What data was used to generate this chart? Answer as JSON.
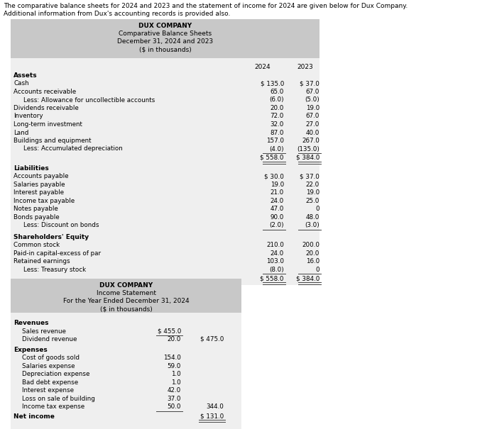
{
  "intro_line1": "The comparative balance sheets for 2024 and 2023 and the statement of income for 2024 are given below for Dux Company.",
  "intro_line2": "Additional information from Dux's accounting records is provided also.",
  "bs_title_lines": [
    "DUX COMPANY",
    "Comparative Balance Sheets",
    "December 31, 2024 and 2023",
    "($ in thousands)"
  ],
  "bs_col_headers": [
    "2024",
    "2023"
  ],
  "bs_assets_header": "Assets",
  "bs_assets_rows": [
    {
      "label": "Cash",
      "indent": false,
      "val2024": "$ 135.0",
      "val2023": "$ 37.0"
    },
    {
      "label": "Accounts receivable",
      "indent": false,
      "val2024": "65.0",
      "val2023": "67.0"
    },
    {
      "label": "  Less: Allowance for uncollectible accounts",
      "indent": true,
      "val2024": "(6.0)",
      "val2023": "(5.0)"
    },
    {
      "label": "Dividends receivable",
      "indent": false,
      "val2024": "20.0",
      "val2023": "19.0"
    },
    {
      "label": "Inventory",
      "indent": false,
      "val2024": "72.0",
      "val2023": "67.0"
    },
    {
      "label": "Long-term investment",
      "indent": false,
      "val2024": "32.0",
      "val2023": "27.0"
    },
    {
      "label": "Land",
      "indent": false,
      "val2024": "87.0",
      "val2023": "40.0"
    },
    {
      "label": "Buildings and equipment",
      "indent": false,
      "val2024": "157.0",
      "val2023": "267.0"
    },
    {
      "label": "  Less: Accumulated depreciation",
      "indent": true,
      "val2024": "(4.0)",
      "val2023": "(135.0)"
    }
  ],
  "bs_assets_total": [
    "$ 558.0",
    "$ 384.0"
  ],
  "bs_liab_header": "Liabilities",
  "bs_liab_rows": [
    {
      "label": "Accounts payable",
      "indent": false,
      "val2024": "$ 30.0",
      "val2023": "$ 37.0"
    },
    {
      "label": "Salaries payable",
      "indent": false,
      "val2024": "19.0",
      "val2023": "22.0"
    },
    {
      "label": "Interest payable",
      "indent": false,
      "val2024": "21.0",
      "val2023": "19.0"
    },
    {
      "label": "Income tax payable",
      "indent": false,
      "val2024": "24.0",
      "val2023": "25.0"
    },
    {
      "label": "Notes payable",
      "indent": false,
      "val2024": "47.0",
      "val2023": "0"
    },
    {
      "label": "Bonds payable",
      "indent": false,
      "val2024": "90.0",
      "val2023": "48.0"
    },
    {
      "label": "  Less: Discount on bonds",
      "indent": true,
      "val2024": "(2.0)",
      "val2023": "(3.0)"
    }
  ],
  "bs_equity_header": "Shareholders' Equity",
  "bs_equity_rows": [
    {
      "label": "Common stock",
      "indent": false,
      "val2024": "210.0",
      "val2023": "200.0"
    },
    {
      "label": "Paid-in capital-excess of par",
      "indent": false,
      "val2024": "24.0",
      "val2023": "20.0"
    },
    {
      "label": "Retained earnings",
      "indent": false,
      "val2024": "103.0",
      "val2023": "16.0"
    },
    {
      "label": "  Less: Treasury stock",
      "indent": true,
      "val2024": "(8.0)",
      "val2023": "0"
    }
  ],
  "bs_total_row": [
    "$ 558.0",
    "$ 384.0"
  ],
  "is_title_lines": [
    "DUX COMPANY",
    "Income Statement",
    "For the Year Ended December 31, 2024",
    "($ in thousands)"
  ],
  "is_rev_header": "Revenues",
  "is_rev_rows": [
    {
      "label": "Sales revenue",
      "c1": "$ 455.0",
      "c2": "",
      "underline": true
    },
    {
      "label": "Dividend revenue",
      "c1": "20.0",
      "c2": "$ 475.0",
      "underline": false
    }
  ],
  "is_exp_header": "Expenses",
  "is_exp_rows": [
    {
      "label": "Cost of goods sold",
      "c1": "154.0",
      "c2": "",
      "underline": false
    },
    {
      "label": "Salaries expense",
      "c1": "59.0",
      "c2": "",
      "underline": false
    },
    {
      "label": "Depreciation expense",
      "c1": "1.0",
      "c2": "",
      "underline": false
    },
    {
      "label": "Bad debt expense",
      "c1": "1.0",
      "c2": "",
      "underline": false
    },
    {
      "label": "Interest expense",
      "c1": "42.0",
      "c2": "",
      "underline": false
    },
    {
      "label": "Loss on sale of building",
      "c1": "37.0",
      "c2": "",
      "underline": false
    },
    {
      "label": "Income tax expense",
      "c1": "50.0",
      "c2": "344.0",
      "underline": true
    }
  ],
  "is_net_income": "$ 131.0",
  "header_bg": "#c8c8c8",
  "table_bg": "#efefef",
  "white_bg": "#ffffff"
}
